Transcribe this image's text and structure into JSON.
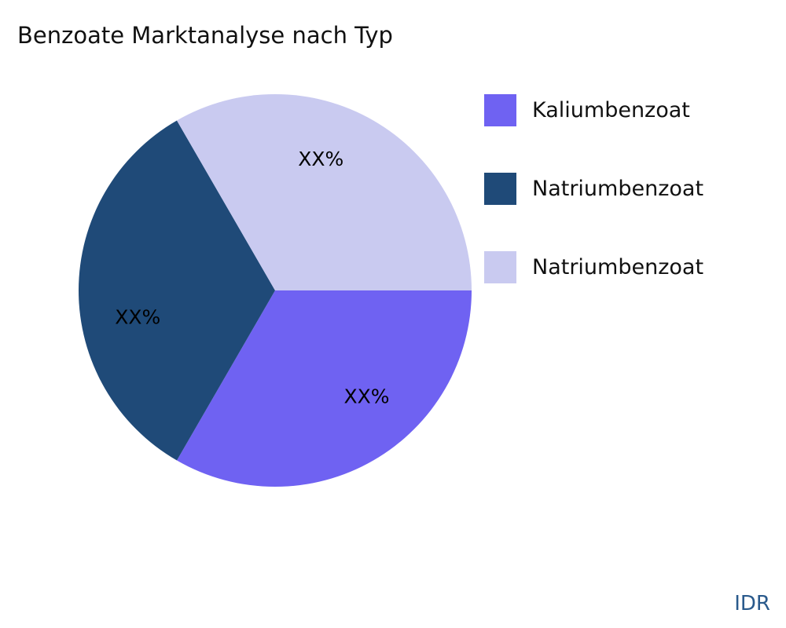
{
  "chart_data": {
    "type": "pie",
    "title": "Benzoate Marktanalyse nach Typ",
    "slices": [
      {
        "name": "Kaliumbenzoat",
        "value": 33.33,
        "label": "XX%",
        "color": "#6f62f2"
      },
      {
        "name": "Natriumbenzoat",
        "value": 33.33,
        "label": "XX%",
        "color": "#1f4a78"
      },
      {
        "name": "Natriumbenzoat",
        "value": 33.33,
        "label": "XX%",
        "color": "#c9caf0"
      }
    ],
    "legend_position": "right"
  },
  "watermark": "IDR"
}
